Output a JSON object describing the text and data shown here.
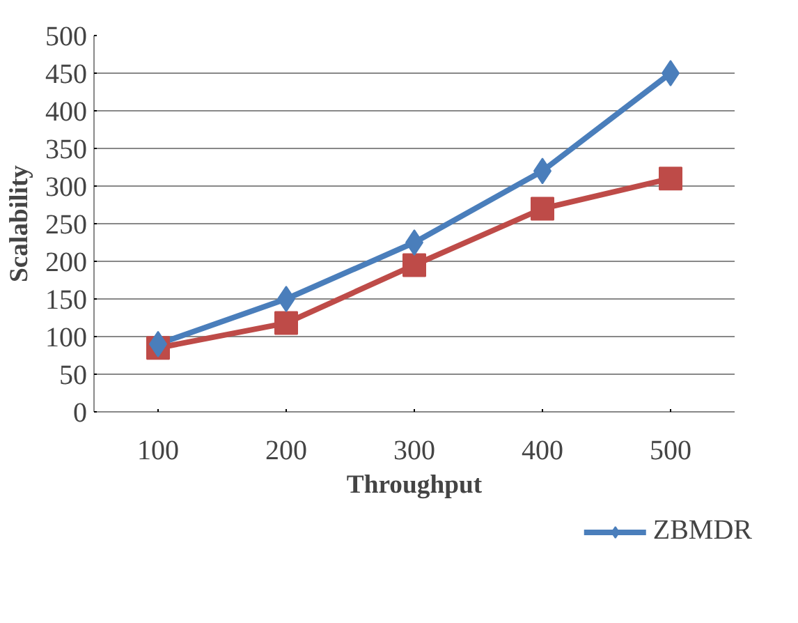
{
  "chart_data": {
    "type": "line",
    "xlabel": "Throughput",
    "ylabel": "Scalability",
    "categories": [
      "100",
      "200",
      "300",
      "400",
      "500"
    ],
    "series": [
      {
        "name": "ZBMDR",
        "color": "#4a7ebb",
        "marker": "diamond",
        "values": [
          90,
          150,
          225,
          320,
          450
        ]
      },
      {
        "color": "#be4b48",
        "marker": "square",
        "values": [
          85,
          118,
          195,
          270,
          310
        ]
      }
    ],
    "ylim": [
      0,
      500
    ],
    "yticks": [
      0,
      50,
      100,
      150,
      200,
      250,
      300,
      350,
      400,
      450,
      500
    ],
    "grid": "y",
    "legend": "bottom right",
    "line_style": "solid"
  }
}
